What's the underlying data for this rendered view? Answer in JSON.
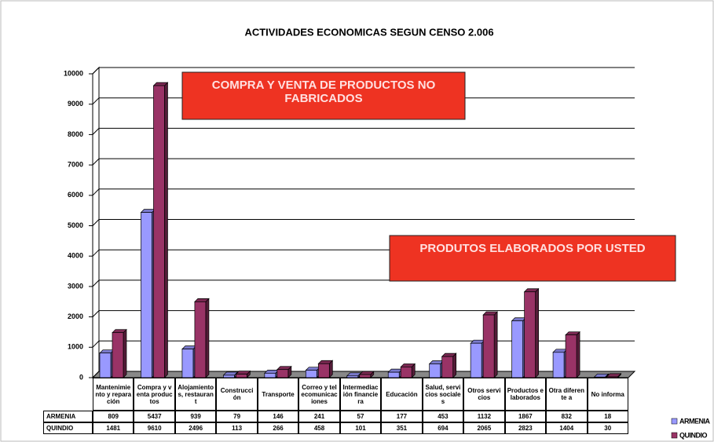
{
  "chart_data": {
    "type": "bar3d",
    "title": "ACTIVIDADES ECONOMICAS SEGUN CENSO 2.006",
    "annotations": [
      "COMPRA Y VENTA DE PRODUCTOS NO FABRICADOS",
      "PRODUTOS ELABORADOS POR USTED"
    ],
    "categories": [
      "Mantenimiento y reparación",
      "Compra y venta productos",
      "Alojamientos, restaurant",
      "Construcción",
      "Transporte",
      "Correo y telecomunicaciones",
      "Intermediación financiera",
      "Educación",
      "Salud, servicios sociales",
      "Otros servicios",
      "Productos elaborados",
      "Otra diferente a",
      "No informa"
    ],
    "series": [
      {
        "name": "ARMENIA",
        "color": "#9999ff",
        "values": [
          809,
          5437,
          939,
          79,
          146,
          241,
          57,
          177,
          453,
          1132,
          1867,
          832,
          18
        ]
      },
      {
        "name": "QUINDIO",
        "color": "#993366",
        "values": [
          1481,
          9610,
          2496,
          113,
          266,
          458,
          101,
          351,
          694,
          2065,
          2823,
          1404,
          30
        ]
      }
    ],
    "ylim": [
      0,
      10000
    ],
    "yticks": [
      0,
      1000,
      2000,
      3000,
      4000,
      5000,
      6000,
      7000,
      8000,
      9000,
      10000
    ],
    "grid": true,
    "legend": "right"
  }
}
